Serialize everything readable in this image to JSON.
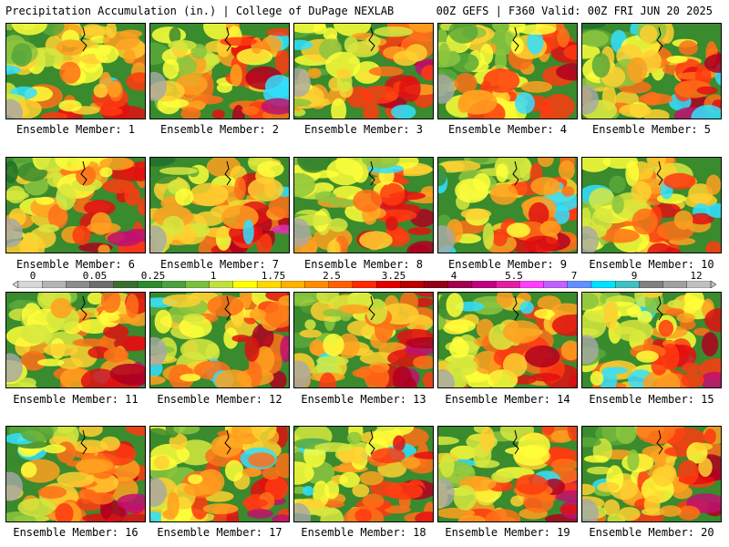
{
  "header": {
    "left": "Precipitation Accumulation (in.) | College of DuPage NEXLAB",
    "right": "00Z GEFS | F360 Valid: 00Z FRI JUN 20 2025"
  },
  "members": [
    "Ensemble Member: 1",
    "Ensemble Member: 2",
    "Ensemble Member: 3",
    "Ensemble Member: 4",
    "Ensemble Member: 5",
    "Ensemble Member: 6",
    "Ensemble Member: 7",
    "Ensemble Member: 8",
    "Ensemble Member: 9",
    "Ensemble Member: 10",
    "Ensemble Member: 11",
    "Ensemble Member: 12",
    "Ensemble Member: 13",
    "Ensemble Member: 14",
    "Ensemble Member: 15",
    "Ensemble Member: 16",
    "Ensemble Member: 17",
    "Ensemble Member: 18",
    "Ensemble Member: 19",
    "Ensemble Member: 20"
  ],
  "colorbar": {
    "ticks": [
      "0",
      "0.05",
      "0.25",
      "1",
      "1.75",
      "2.5",
      "3.25",
      "4",
      "5.5",
      "7",
      "9",
      "12"
    ],
    "colors": [
      "#d8d8d8",
      "#b4b4b4",
      "#8c8c8c",
      "#6e6e6e",
      "#3c6e32",
      "#2e8b2e",
      "#4ca040",
      "#7cc040",
      "#c0e040",
      "#ffff00",
      "#ffd800",
      "#ffb000",
      "#ff8c00",
      "#ff6000",
      "#ff2a00",
      "#e00000",
      "#b80000",
      "#900018",
      "#a00050",
      "#c00080",
      "#e020a0",
      "#ff40ff",
      "#c060ff",
      "#6090ff",
      "#00e0ff",
      "#40c0c0",
      "#808080",
      "#a0a0a0",
      "#c0c0c0"
    ]
  }
}
